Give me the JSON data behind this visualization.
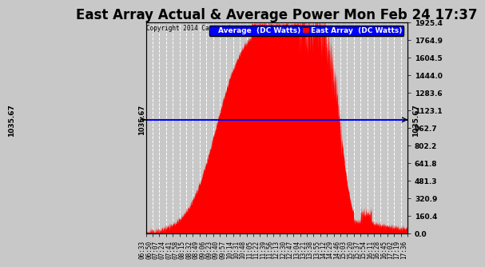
{
  "title": "East Array Actual & Average Power Mon Feb 24 17:37",
  "copyright": "Copyright 2014 Cartronics.com",
  "average_value": 1035.67,
  "y_max": 1925.4,
  "y_min": 0.0,
  "y_ticks": [
    0.0,
    160.4,
    320.9,
    481.3,
    641.8,
    802.2,
    962.7,
    1123.1,
    1283.6,
    1444.0,
    1604.5,
    1764.9,
    1925.4
  ],
  "y_tick_labels": [
    "0.0",
    "160.4",
    "320.9",
    "481.3",
    "641.8",
    "802.2",
    "962.7",
    "1123.1",
    "1283.6",
    "1444.0",
    "1604.5",
    "1764.9",
    "1925.4"
  ],
  "background_color": "#c8c8c8",
  "plot_bg_color": "#c8c8c8",
  "fill_color": "#ff0000",
  "line_color": "#0000ff",
  "legend_avg_color": "#0000ff",
  "legend_east_color": "#ff0000",
  "title_fontsize": 12,
  "x_labels": [
    "06:33",
    "06:50",
    "07:07",
    "07:24",
    "07:41",
    "07:58",
    "08:15",
    "08:32",
    "08:49",
    "09:06",
    "09:23",
    "09:40",
    "09:57",
    "10:14",
    "10:31",
    "10:48",
    "11:05",
    "11:22",
    "11:39",
    "11:56",
    "12:13",
    "12:30",
    "12:47",
    "13:04",
    "13:21",
    "13:38",
    "13:55",
    "14:12",
    "14:29",
    "14:46",
    "15:03",
    "15:20",
    "15:37",
    "15:54",
    "16:11",
    "16:28",
    "16:45",
    "17:02",
    "17:19",
    "17:36"
  ],
  "x_label_rotation": 90,
  "grid_color": "#ffffff",
  "grid_linestyle": "--",
  "grid_linewidth": 0.7
}
